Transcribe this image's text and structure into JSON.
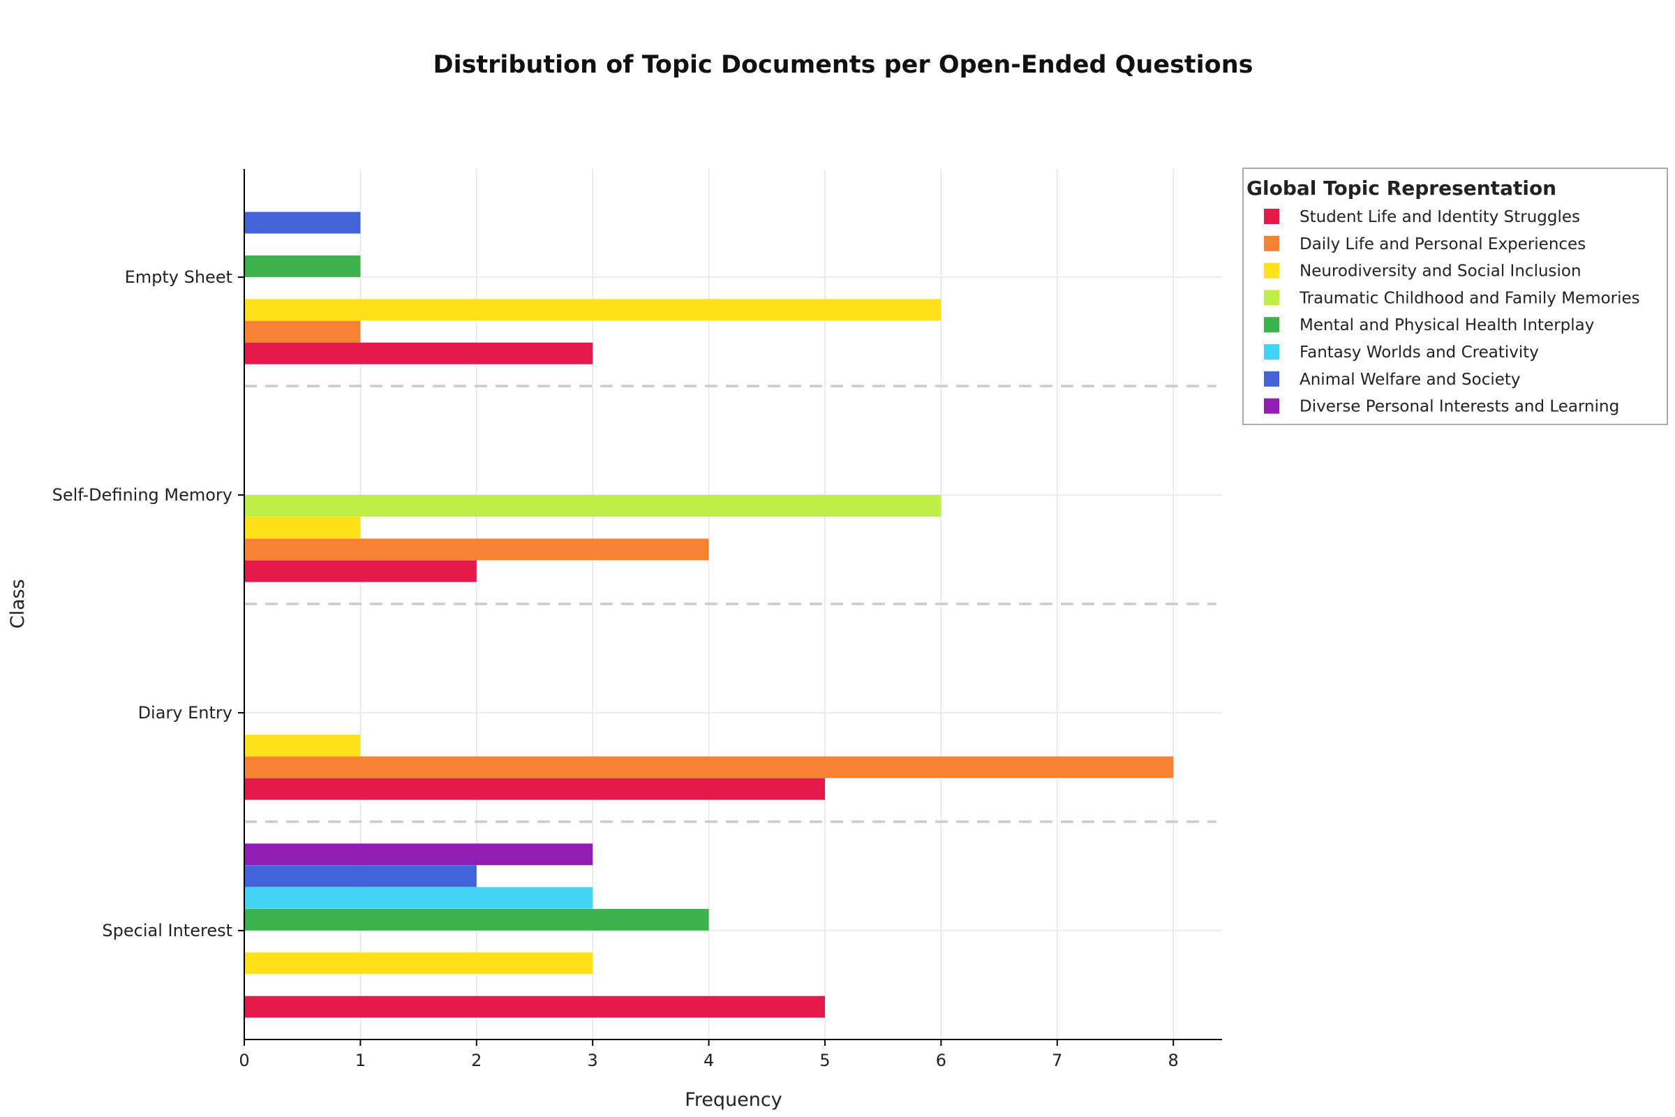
{
  "chart_data": {
    "type": "bar",
    "orientation": "horizontal",
    "title": "Distribution of Topic Documents per Open-Ended Questions",
    "xlabel": "Frequency",
    "ylabel": "Class",
    "xlim": [
      0,
      8.4
    ],
    "xticks": [
      "0",
      "1",
      "2",
      "3",
      "4",
      "5",
      "6",
      "7",
      "8"
    ],
    "categories": [
      "Empty Sheet",
      "Self-Defining Memory",
      "Diary Entry",
      "Special Interest"
    ],
    "grid": true,
    "legend_title": "Global Topic Representation",
    "legend_position": "outside-top-right",
    "series": [
      {
        "name": "Student Life and Identity Struggles",
        "color": "#e6194b",
        "values": [
          3,
          2,
          5,
          5
        ]
      },
      {
        "name": "Daily Life and Personal Experiences",
        "color": "#f58231",
        "values": [
          1,
          4,
          8,
          0
        ]
      },
      {
        "name": "Neurodiversity and Social Inclusion",
        "color": "#ffe119",
        "values": [
          6,
          1,
          1,
          3
        ]
      },
      {
        "name": "Traumatic Childhood and Family Memories",
        "color": "#bfef45",
        "values": [
          0,
          6,
          0,
          0
        ]
      },
      {
        "name": "Mental and Physical Health Interplay",
        "color": "#3cb44b",
        "values": [
          1,
          0,
          0,
          4
        ]
      },
      {
        "name": "Fantasy Worlds and Creativity",
        "color": "#42d4f4",
        "values": [
          0,
          0,
          0,
          3
        ]
      },
      {
        "name": "Animal Welfare and Society",
        "color": "#4363d8",
        "values": [
          1,
          0,
          0,
          2
        ]
      },
      {
        "name": "Diverse Personal Interests and Learning",
        "color": "#911eb4",
        "values": [
          0,
          0,
          0,
          3
        ]
      }
    ]
  }
}
